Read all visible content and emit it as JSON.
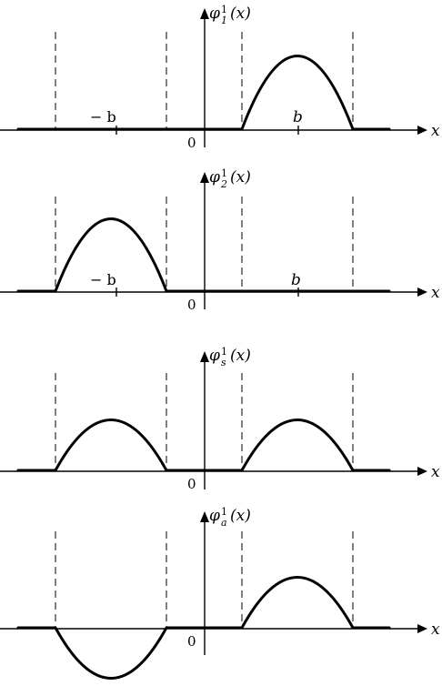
{
  "panels": [
    {
      "id": "phi1",
      "func": "φ",
      "sub": "1",
      "sup": "1",
      "arg": "(x)",
      "humps": [
        {
          "center": "+b",
          "sign": 1
        }
      ],
      "tick_labels": [
        "− b",
        "b"
      ],
      "origin_label": "0",
      "axis_label": "x"
    },
    {
      "id": "phi2",
      "func": "φ",
      "sub": "2",
      "sup": "1",
      "arg": "(x)",
      "humps": [
        {
          "center": "-b",
          "sign": 1
        }
      ],
      "tick_labels": [
        "− b",
        "b"
      ],
      "origin_label": "0",
      "axis_label": "x"
    },
    {
      "id": "phis",
      "func": "φ",
      "sub": "s",
      "sup": "1",
      "arg": "(x)",
      "humps": [
        {
          "center": "-b",
          "sign": 1
        },
        {
          "center": "+b",
          "sign": 1
        }
      ],
      "tick_labels": [],
      "origin_label": "0",
      "axis_label": "x"
    },
    {
      "id": "phia",
      "func": "φ",
      "sub": "a",
      "sup": "1",
      "arg": "(x)",
      "humps": [
        {
          "center": "-b",
          "sign": -1
        },
        {
          "center": "+b",
          "sign": 1
        }
      ],
      "tick_labels": [],
      "origin_label": "0",
      "axis_label": "x"
    }
  ]
}
